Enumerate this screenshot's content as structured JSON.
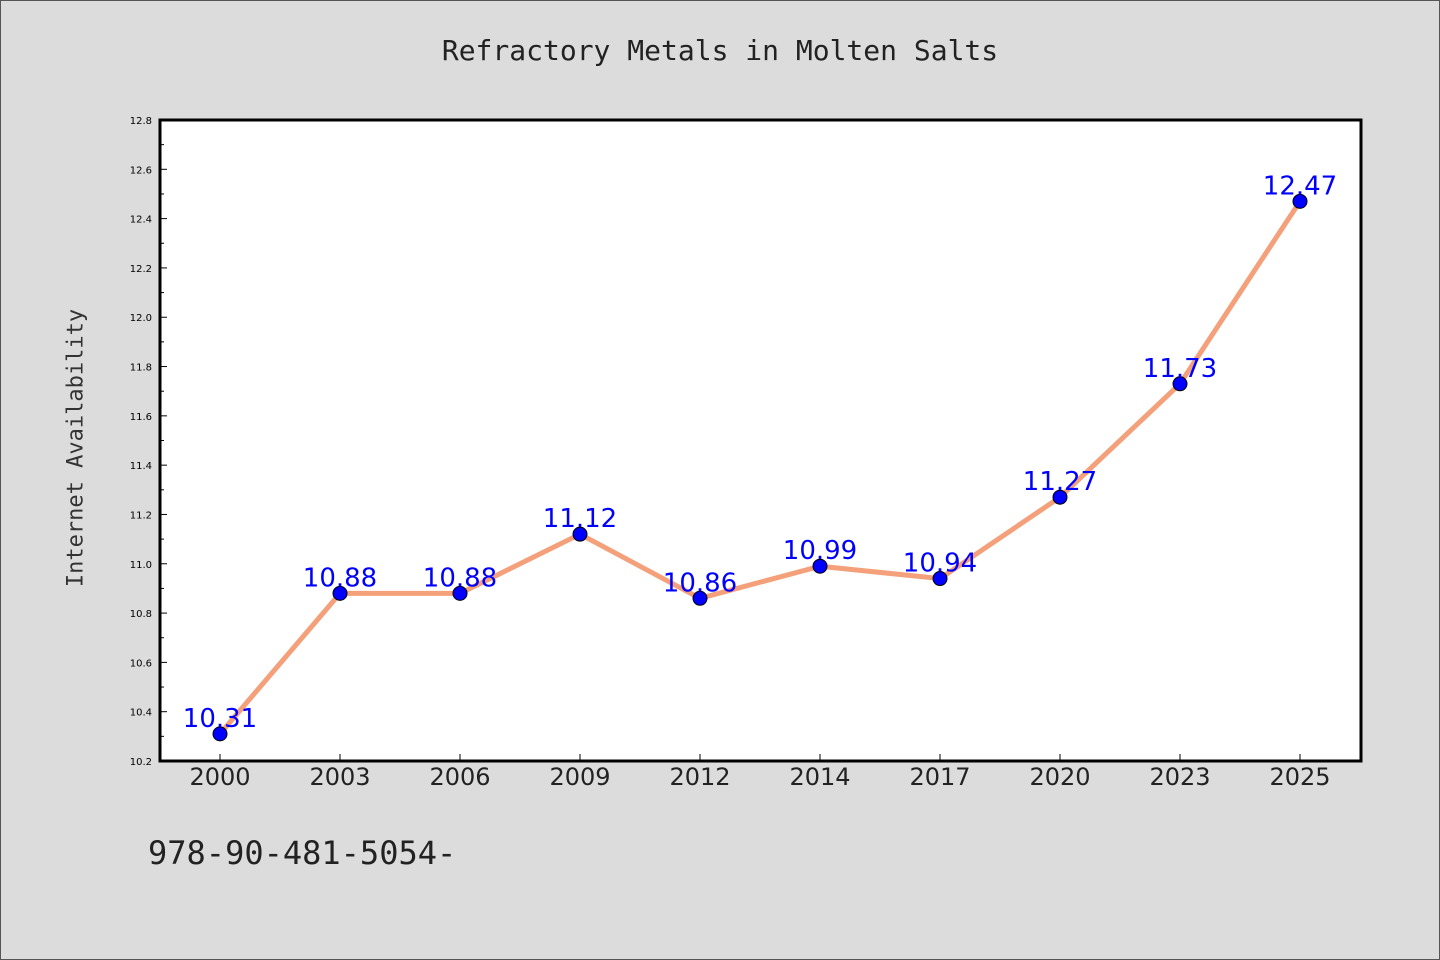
{
  "chart_data": {
    "type": "line",
    "title": "Refractory Metals in Molten Salts",
    "xlabel": "",
    "ylabel": "Internet Availability",
    "categories": [
      "2000",
      "2003",
      "2006",
      "2009",
      "2012",
      "2014",
      "2017",
      "2020",
      "2023",
      "2025"
    ],
    "values": [
      10.31,
      10.88,
      10.88,
      11.12,
      10.86,
      10.99,
      10.94,
      11.27,
      11.73,
      12.47
    ],
    "value_labels": [
      "10.31",
      "10.88",
      "10.88",
      "11.12",
      "10.86",
      "10.99",
      "10.94",
      "11.27",
      "11.73",
      "12.47"
    ],
    "ylim": [
      10.2,
      12.8
    ],
    "yticks": [
      "10.2",
      "10.4",
      "10.6",
      "10.8",
      "11.0",
      "11.2",
      "11.4",
      "11.6",
      "11.8",
      "12.0",
      "12.2",
      "12.4",
      "12.6",
      "12.8"
    ],
    "grid": false,
    "line_color": "#f4a07a",
    "marker_color": "#0000ff",
    "label_color": "#0000ff"
  },
  "footer_text": "978-90-481-5054-"
}
